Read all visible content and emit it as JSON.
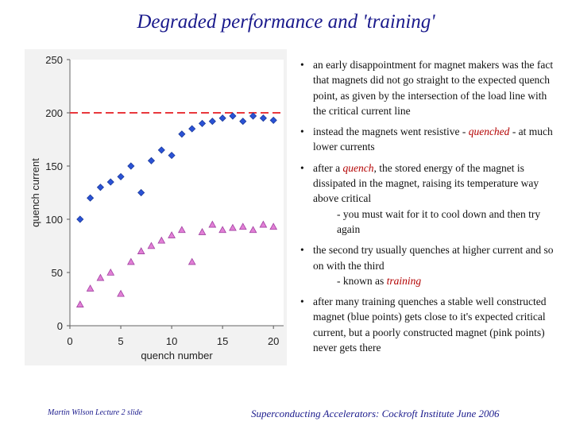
{
  "slide": {
    "title": "Degraded performance and 'training'",
    "footer_left": "Martin Wilson Lecture 2 slide",
    "footer_right": "Superconducting Accelerators:  Cockroft Institute June 2006"
  },
  "bullets": [
    {
      "parts": [
        {
          "text": "an early disappointment for magnet makers was the fact that magnets did not go straight to the expected quench point, as given by the intersection of the load line with the critical current line"
        }
      ]
    },
    {
      "parts": [
        {
          "text": "instead the magnets went resistive - "
        },
        {
          "text": "quenched",
          "em": true
        },
        {
          "text": " - at much lower currents"
        }
      ]
    },
    {
      "parts": [
        {
          "text": "after a "
        },
        {
          "text": "quench",
          "em": true
        },
        {
          "text": ", the stored energy of the magnet is dissipated in the magnet, raising its temperature way above critical"
        }
      ],
      "sub": [
        {
          "text": "- you must wait for it to cool down and then try again"
        }
      ]
    },
    {
      "parts": [
        {
          "text": "the second try usually quenches at higher current and so on with the third"
        }
      ],
      "sub": [
        {
          "text": "- known as "
        },
        {
          "text": "training",
          "em": true
        }
      ]
    },
    {
      "parts": [
        {
          "text": "after many training quenches a stable well constructed magnet (blue points) gets close to it's expected critical current, but a poorly constructed magnet (pink points) never gets there"
        }
      ]
    }
  ],
  "chart_data": {
    "type": "scatter",
    "title": "",
    "xlabel": "quench number",
    "ylabel": "quench current",
    "xlim": [
      0,
      21
    ],
    "ylim": [
      0,
      250
    ],
    "xticks": [
      0,
      5,
      10,
      15,
      20
    ],
    "yticks": [
      0,
      50,
      100,
      150,
      200,
      250
    ],
    "reference_line": {
      "y": 200,
      "color": "#e8383d",
      "style": "dashed"
    },
    "series": [
      {
        "name": "well constructed magnet",
        "marker": "diamond",
        "color": "#2a52d6",
        "x": [
          1,
          2,
          3,
          4,
          5,
          6,
          7,
          8,
          9,
          10,
          11,
          12,
          13,
          14,
          15,
          16,
          17,
          18,
          19,
          20
        ],
        "y": [
          100,
          120,
          130,
          135,
          140,
          150,
          125,
          155,
          165,
          160,
          180,
          185,
          190,
          192,
          195,
          197,
          192,
          197,
          195,
          193
        ]
      },
      {
        "name": "poorly constructed magnet",
        "marker": "triangle",
        "color": "#e27fd6",
        "x": [
          1,
          2,
          3,
          4,
          5,
          6,
          7,
          8,
          9,
          10,
          11,
          12,
          13,
          14,
          15,
          16,
          17,
          18,
          19,
          20
        ],
        "y": [
          20,
          35,
          45,
          50,
          30,
          60,
          70,
          75,
          80,
          85,
          90,
          60,
          88,
          95,
          90,
          92,
          93,
          90,
          95,
          93
        ]
      }
    ]
  }
}
